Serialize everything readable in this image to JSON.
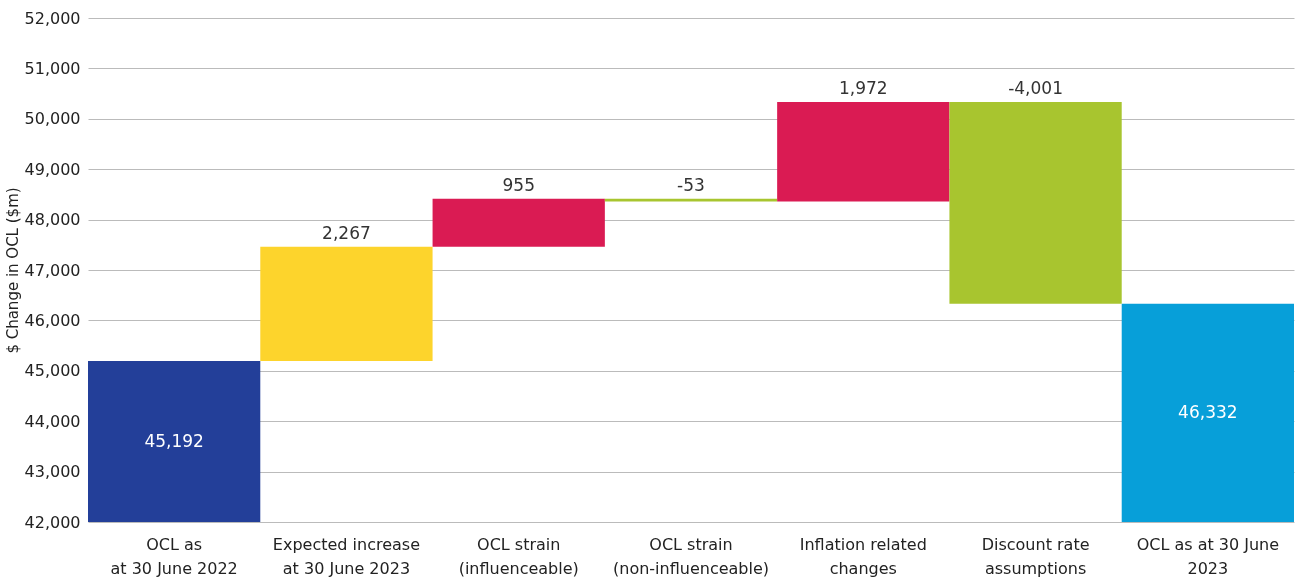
{
  "chart_data": {
    "type": "bar",
    "ylabel": "$ Change in OCL ($m)",
    "categories": [
      "OCL as\nat 30 June 2022",
      "Expected increase\nat 30 June 2023",
      "OCL strain\n(influenceable)",
      "OCL strain\n(non-influenceable)",
      "Inflation related\nchanges",
      "Discount rate\nassumptions",
      "OCL as at 30 June\n2023"
    ],
    "values": [
      45192,
      2267,
      955,
      -53,
      1972,
      -4001,
      46332
    ],
    "base": [
      null,
      45192,
      47459,
      48414,
      48361,
      50333,
      null
    ],
    "value_labels": [
      "45,192",
      "2,267",
      "955",
      "-53",
      "1,972",
      "-4,001",
      "46,332"
    ],
    "colors": [
      "#233f99",
      "#fdd42c",
      "#da1b53",
      "#a8c52f",
      "#da1b53",
      "#a8c52f",
      "#079fd9"
    ],
    "ylim": [
      42000,
      52000
    ],
    "yticks": [
      {
        "value": 42000,
        "label": "42,000"
      },
      {
        "value": 43000,
        "label": "43,000"
      },
      {
        "value": 44000,
        "label": "44,000"
      },
      {
        "value": 45000,
        "label": "45,000"
      },
      {
        "value": 46000,
        "label": "46,000"
      },
      {
        "value": 47000,
        "label": "47,000"
      },
      {
        "value": 48000,
        "label": "48,000"
      },
      {
        "value": 49000,
        "label": "49,000"
      },
      {
        "value": 50000,
        "label": "50,000"
      },
      {
        "value": 51000,
        "label": "51,000"
      },
      {
        "value": 52000,
        "label": "52,000"
      }
    ],
    "grid": "y"
  }
}
